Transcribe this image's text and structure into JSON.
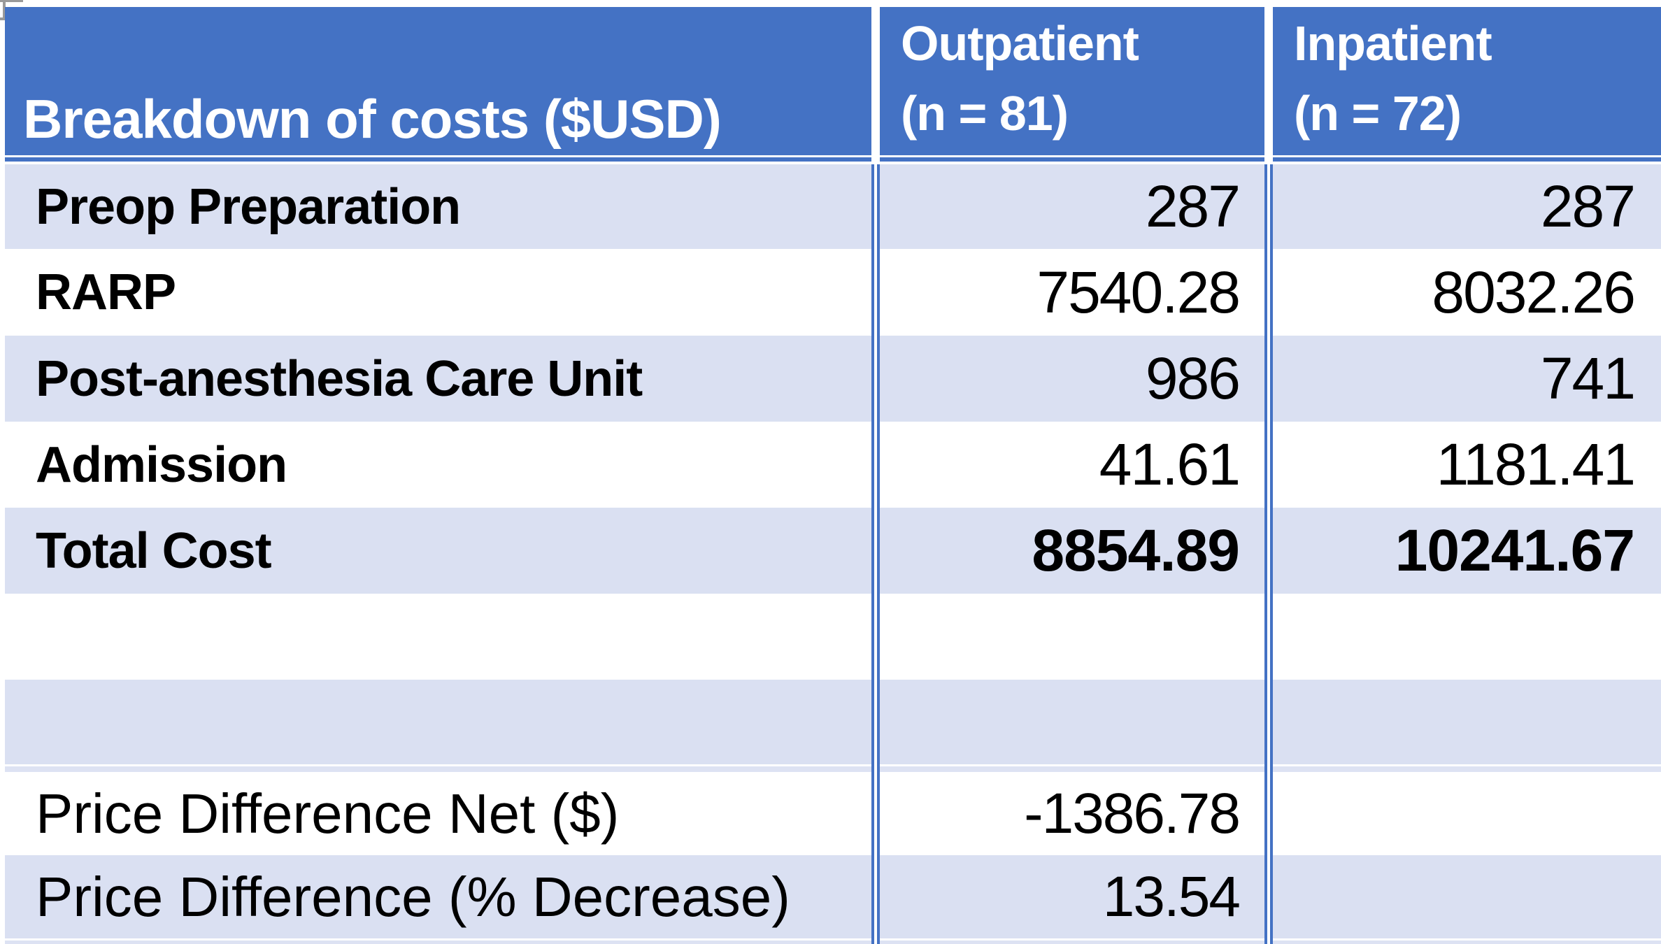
{
  "title": "Breakdown of costs ($USD)",
  "columns": [
    {
      "name": "Outpatient",
      "n": "(n = 81)"
    },
    {
      "name": "Inpatient",
      "n": "(n = 72)"
    }
  ],
  "rows": [
    {
      "label": "Preop Preparation",
      "outpatient": "287",
      "inpatient": "287"
    },
    {
      "label": "RARP",
      "outpatient": "7540.28",
      "inpatient": "8032.26"
    },
    {
      "label": "Post-anesthesia Care Unit",
      "outpatient": "986",
      "inpatient": "741"
    },
    {
      "label": "Admission",
      "outpatient": "41.61",
      "inpatient": "1181.41"
    },
    {
      "label": "Total Cost",
      "outpatient": "8854.89",
      "inpatient": "10241.67"
    },
    {
      "label": "Price Difference Net ($)",
      "outpatient": "-1386.78",
      "inpatient": ""
    },
    {
      "label": "Price Difference (% Decrease)",
      "outpatient": "13.54",
      "inpatient": ""
    }
  ],
  "colors": {
    "header_blue": "#4472C4",
    "band_blue": "#DAE0F2",
    "separator_line_blue": "#4472C4",
    "corner_artifact_grey": "#9A9A9A",
    "header_text": "#FFFFFF",
    "body_text": "#000000"
  },
  "chart_data": {
    "type": "table",
    "title": "Breakdown of costs ($USD)",
    "columns": [
      "Breakdown of costs ($USD)",
      "Outpatient (n = 81)",
      "Inpatient (n = 72)"
    ],
    "rows": [
      [
        "Preop Preparation",
        287,
        287
      ],
      [
        "RARP",
        7540.28,
        8032.26
      ],
      [
        "Post-anesthesia Care Unit",
        986,
        741
      ],
      [
        "Admission",
        41.61,
        1181.41
      ],
      [
        "Total Cost",
        8854.89,
        10241.67
      ],
      [
        "",
        null,
        null
      ],
      [
        "",
        null,
        null
      ],
      [
        "Price Difference Net ($)",
        -1386.78,
        null
      ],
      [
        "Price Difference (% Decrease)",
        13.54,
        null
      ]
    ],
    "notes": "Bold totals row; banded alternating light-blue rows; Inpatient cells empty for the two Price Difference rows"
  }
}
